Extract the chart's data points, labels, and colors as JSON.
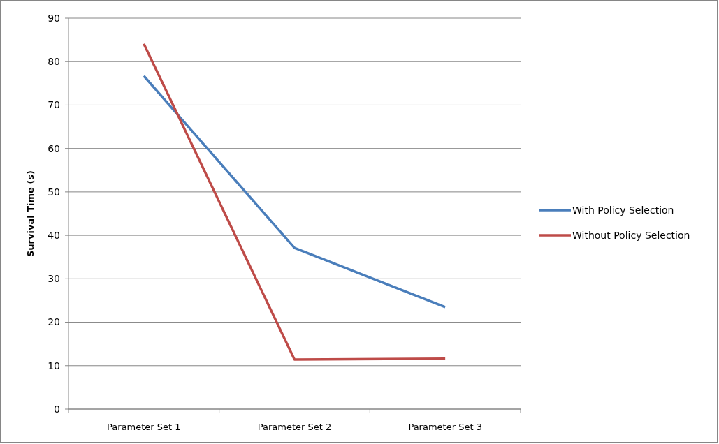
{
  "chart_data": {
    "type": "line",
    "ylabel": "Survival Time (s)",
    "categories": [
      "Parameter Set 1",
      "Parameter Set 2",
      "Parameter Set 3"
    ],
    "series": [
      {
        "name": "With Policy Selection",
        "color": "#4a7ebb",
        "values": [
          76.7,
          37.1,
          23.5
        ]
      },
      {
        "name": "Without Policy Selection",
        "color": "#be4b48",
        "values": [
          84.1,
          11.4,
          11.6
        ]
      }
    ],
    "ylim": [
      0,
      90
    ],
    "yticks": [
      0,
      10,
      20,
      30,
      40,
      50,
      60,
      70,
      80,
      90
    ],
    "grid": "y",
    "legend": "right",
    "marker": "none",
    "line_style": "solid"
  }
}
